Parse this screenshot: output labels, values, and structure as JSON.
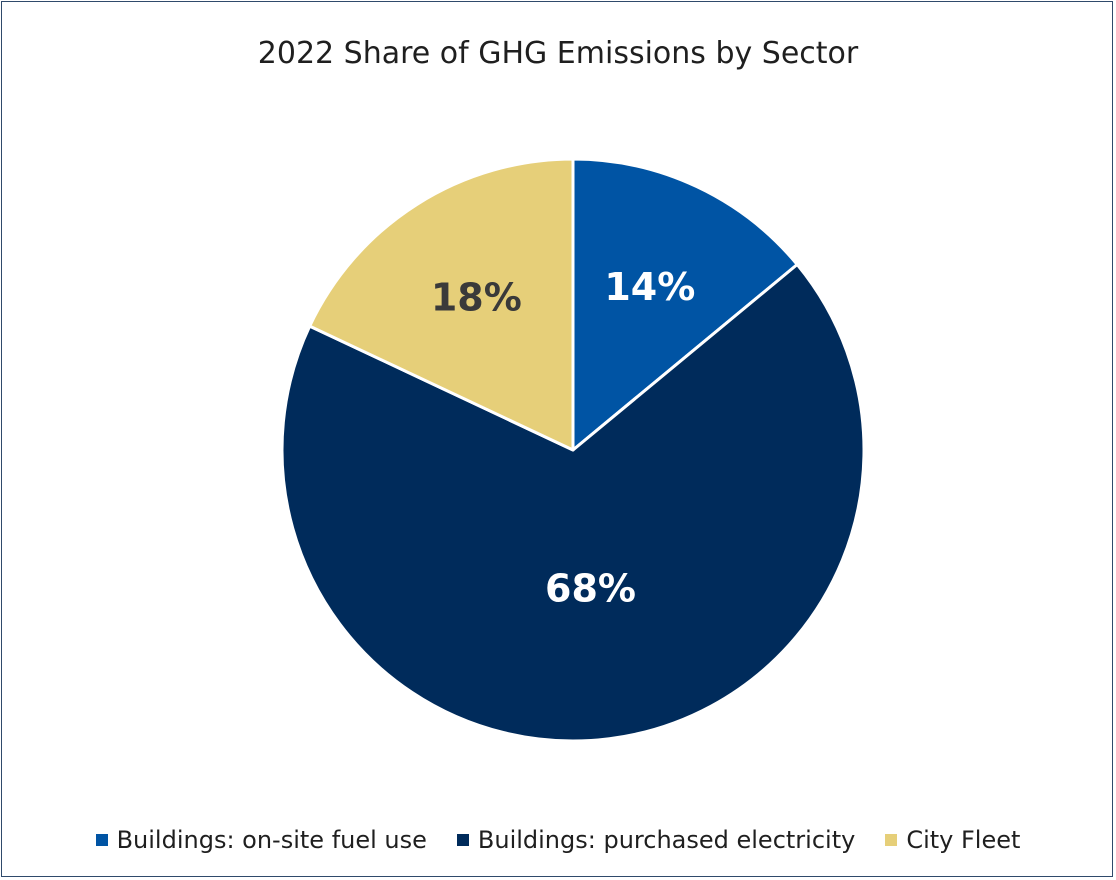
{
  "chart_data": {
    "type": "pie",
    "title": "2022 Share of GHG Emissions by Sector",
    "slices": [
      {
        "label": "Buildings: on-site fuel use",
        "value": 14,
        "display": "14%",
        "color": "#0054A4",
        "text_color": "#FFFFFF"
      },
      {
        "label": "Buildings: purchased electricity",
        "value": 68,
        "display": "68%",
        "color": "#002B5B",
        "text_color": "#FFFFFF"
      },
      {
        "label": "City Fleet",
        "value": 18,
        "display": "18%",
        "color": "#E6CF79",
        "text_color": "#3A3A3A"
      }
    ],
    "start_angle": "12 o'clock, clockwise",
    "legend_position": "bottom",
    "slice_border_color": "#FFFFFF"
  }
}
